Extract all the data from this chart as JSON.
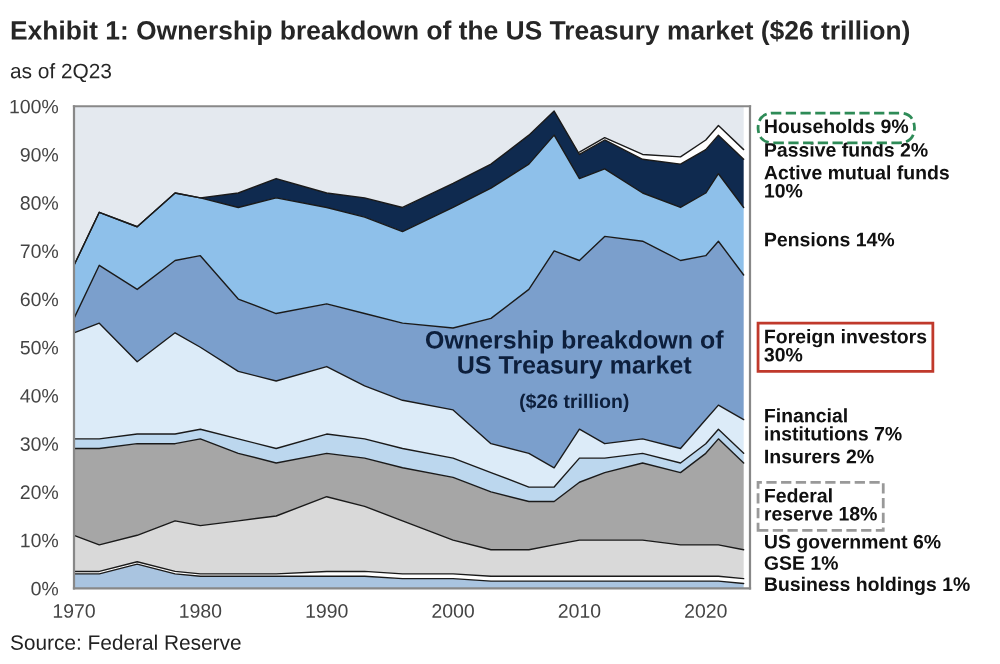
{
  "chart_data": {
    "type": "area",
    "stacked": true,
    "title": "Exhibit 1: Ownership breakdown of the US Treasury market ($26 trillion)",
    "subtitle": "as of 2Q23",
    "x": [
      1970,
      1972,
      1975,
      1978,
      1980,
      1983,
      1986,
      1990,
      1993,
      1996,
      2000,
      2003,
      2006,
      2008,
      2010,
      2012,
      2015,
      2018,
      2020,
      2021,
      2023
    ],
    "series": [
      {
        "name": "Business holdings 1%",
        "color": "#a9c4e0",
        "values": [
          3,
          3,
          5,
          3,
          2.5,
          2.5,
          2.5,
          2.5,
          2.5,
          2,
          2,
          1.5,
          1.5,
          1.5,
          1.5,
          1.5,
          1.5,
          1.5,
          1.5,
          1.5,
          1
        ]
      },
      {
        "name": "GSE 1%",
        "color": "#ffffff",
        "values": [
          0.5,
          0.5,
          0.5,
          0.5,
          0.5,
          0.5,
          0.5,
          1,
          1,
          1,
          1,
          1,
          1,
          1,
          1,
          1,
          1,
          1,
          1,
          1,
          1
        ]
      },
      {
        "name": "US government 6%",
        "color": "#d9d9d9",
        "values": [
          7.5,
          5.5,
          5.5,
          10.5,
          10,
          11,
          12,
          15.5,
          13.5,
          11,
          7,
          5.5,
          5.5,
          6.5,
          7.5,
          7.5,
          7.5,
          6.5,
          6.5,
          6.5,
          6
        ]
      },
      {
        "name": "Federal\nreserve 18%",
        "color": "#a6a6a6",
        "values": [
          18,
          20,
          19,
          16,
          18,
          14,
          11,
          9,
          10,
          11,
          13,
          12,
          10,
          9,
          12,
          14,
          16,
          15,
          19,
          22,
          18
        ]
      },
      {
        "name": "Insurers 2%",
        "color": "#bcd7ee",
        "values": [
          2,
          2,
          2,
          2,
          2,
          3,
          3,
          4,
          4,
          4,
          4,
          4,
          3,
          3,
          5,
          3,
          2,
          2,
          2,
          2,
          2
        ]
      },
      {
        "name": "Financial\ninstitutions 7%",
        "color": "#dcebf8",
        "values": [
          22,
          24,
          15,
          21,
          17,
          14,
          14,
          14,
          11,
          10,
          10,
          6,
          7,
          4,
          6,
          3,
          3,
          3,
          5,
          5,
          7
        ]
      },
      {
        "name": "Foreign investors\n30%",
        "color": "#7b9fcc",
        "values": [
          3,
          12,
          15,
          15,
          19,
          15,
          14,
          13,
          15,
          16,
          17,
          26,
          34,
          45,
          35,
          43,
          41,
          39,
          34,
          34,
          30
        ]
      },
      {
        "name": "Pensions 14%",
        "color": "#8ec0ea",
        "values": [
          11,
          11,
          13,
          14,
          12,
          19,
          24,
          20,
          20,
          19,
          25,
          27,
          26,
          24,
          17,
          14,
          10,
          11,
          13,
          14,
          14
        ]
      },
      {
        "name": "Active mutual funds\n10%",
        "color": "#0f2a4f",
        "values": [
          0,
          0,
          0,
          0,
          0,
          3,
          4,
          3,
          4,
          5,
          5,
          5,
          6,
          5,
          5,
          6,
          7,
          9,
          9,
          8,
          10
        ]
      },
      {
        "name": "Passive funds 2%",
        "color": "#ffffff",
        "values": [
          null,
          null,
          null,
          null,
          null,
          null,
          null,
          null,
          null,
          null,
          null,
          null,
          null,
          null,
          0.5,
          0.5,
          1,
          1.5,
          2,
          2,
          2
        ]
      },
      {
        "name": "Households 9%",
        "color": "#e4e9ef",
        "values": [
          33,
          22,
          25,
          18,
          19,
          18,
          15,
          18,
          19,
          21,
          16,
          12,
          6,
          1,
          9.5,
          6.5,
          10,
          10.5,
          7,
          4,
          9
        ]
      }
    ],
    "xlim": [
      1970,
      2023.5
    ],
    "xticks": [
      1970,
      1980,
      1990,
      2000,
      2010,
      2020
    ],
    "ylim": [
      0,
      100
    ],
    "yticks": [
      {
        "value": 0,
        "label": "0%"
      },
      {
        "value": 10,
        "label": "10%"
      },
      {
        "value": 20,
        "label": "20%"
      },
      {
        "value": 30,
        "label": "30%"
      },
      {
        "value": 40,
        "label": "40%"
      },
      {
        "value": 50,
        "label": "50%"
      },
      {
        "value": 60,
        "label": "60%"
      },
      {
        "value": 70,
        "label": "70%"
      },
      {
        "value": 80,
        "label": "80%"
      },
      {
        "value": 90,
        "label": "90%"
      },
      {
        "value": 100,
        "label": "100%"
      }
    ],
    "grid": false,
    "legend": false,
    "annotations": [
      "Ownership breakdown of\nUS Treasury market",
      "($26 trillion)",
      "Source: Federal Reserve"
    ]
  }
}
